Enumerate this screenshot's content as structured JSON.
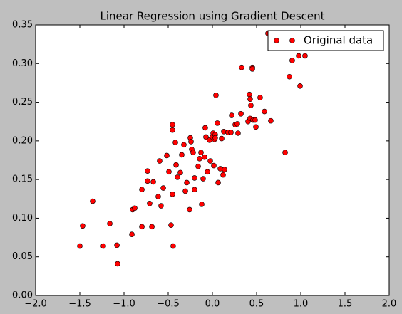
{
  "chart_data": {
    "type": "scatter",
    "title": "Linear Regression using Gradient Descent",
    "series": [
      {
        "name": "Original data",
        "color": "#ff0000",
        "x": [
          -1.5,
          -1.468,
          -1.355,
          -1.234,
          -1.161,
          -1.08,
          -1.073,
          -0.911,
          -0.903,
          -0.879,
          -0.798,
          -0.798,
          -0.734,
          -0.734,
          -0.71,
          -0.685,
          -0.669,
          -0.613,
          -0.597,
          -0.581,
          -0.556,
          -0.516,
          -0.492,
          -0.468,
          -0.452,
          -0.452,
          -0.452,
          -0.444,
          -0.419,
          -0.411,
          -0.395,
          -0.363,
          -0.347,
          -0.323,
          -0.306,
          -0.29,
          -0.258,
          -0.25,
          -0.242,
          -0.234,
          -0.218,
          -0.202,
          -0.202,
          -0.161,
          -0.145,
          -0.129,
          -0.121,
          -0.105,
          -0.089,
          -0.081,
          -0.073,
          -0.056,
          -0.032,
          -0.024,
          0.0,
          0.008,
          0.016,
          0.024,
          0.032,
          0.032,
          0.04,
          0.056,
          0.065,
          0.089,
          0.105,
          0.121,
          0.129,
          0.137,
          0.177,
          0.21,
          0.218,
          0.258,
          0.282,
          0.29,
          0.323,
          0.331,
          0.403,
          0.419,
          0.427,
          0.427,
          0.435,
          0.452,
          0.452,
          0.46,
          0.484,
          0.492,
          0.54,
          0.589,
          0.629,
          0.661,
          0.823,
          0.871,
          0.903,
          0.976,
          0.992,
          1.048
        ],
        "values": [
          0.064,
          0.09,
          0.122,
          0.064,
          0.093,
          0.065,
          0.041,
          0.079,
          0.111,
          0.113,
          0.089,
          0.137,
          0.161,
          0.148,
          0.119,
          0.089,
          0.147,
          0.128,
          0.174,
          0.116,
          0.139,
          0.181,
          0.16,
          0.091,
          0.131,
          0.214,
          0.221,
          0.064,
          0.198,
          0.169,
          0.153,
          0.159,
          0.182,
          0.195,
          0.135,
          0.146,
          0.111,
          0.204,
          0.199,
          0.189,
          0.185,
          0.137,
          0.152,
          0.167,
          0.177,
          0.185,
          0.118,
          0.151,
          0.179,
          0.217,
          0.205,
          0.16,
          0.201,
          0.174,
          0.205,
          0.21,
          0.168,
          0.202,
          0.208,
          0.204,
          0.259,
          0.223,
          0.146,
          0.164,
          0.203,
          0.156,
          0.212,
          0.163,
          0.211,
          0.211,
          0.233,
          0.221,
          0.222,
          0.21,
          0.235,
          0.295,
          0.225,
          0.26,
          0.229,
          0.254,
          0.246,
          0.295,
          0.293,
          0.227,
          0.227,
          0.218,
          0.256,
          0.238,
          0.339,
          0.226,
          0.185,
          0.283,
          0.304,
          0.31,
          0.271,
          0.31
        ]
      }
    ],
    "xlim": [
      -2,
      2
    ],
    "xticks": [
      {
        "value": -2,
        "label": "−2.0"
      },
      {
        "value": -1.5,
        "label": "−1.5"
      },
      {
        "value": -1,
        "label": "−1.0"
      },
      {
        "value": -0.5,
        "label": "−0.5"
      },
      {
        "value": 0,
        "label": "0.0"
      },
      {
        "value": 0.5,
        "label": "0.5"
      },
      {
        "value": 1,
        "label": "1.0"
      },
      {
        "value": 1.5,
        "label": "1.5"
      },
      {
        "value": 2,
        "label": "2.0"
      }
    ],
    "ylim": [
      0,
      0.35
    ],
    "yticks": [
      {
        "value": 0,
        "label": "0.00"
      },
      {
        "value": 0.05,
        "label": "0.05"
      },
      {
        "value": 0.1,
        "label": "0.10"
      },
      {
        "value": 0.15,
        "label": "0.15"
      },
      {
        "value": 0.2,
        "label": "0.20"
      },
      {
        "value": 0.25,
        "label": "0.25"
      },
      {
        "value": 0.3,
        "label": "0.30"
      },
      {
        "value": 0.35,
        "label": "0.35"
      }
    ],
    "legend": "upper right"
  }
}
